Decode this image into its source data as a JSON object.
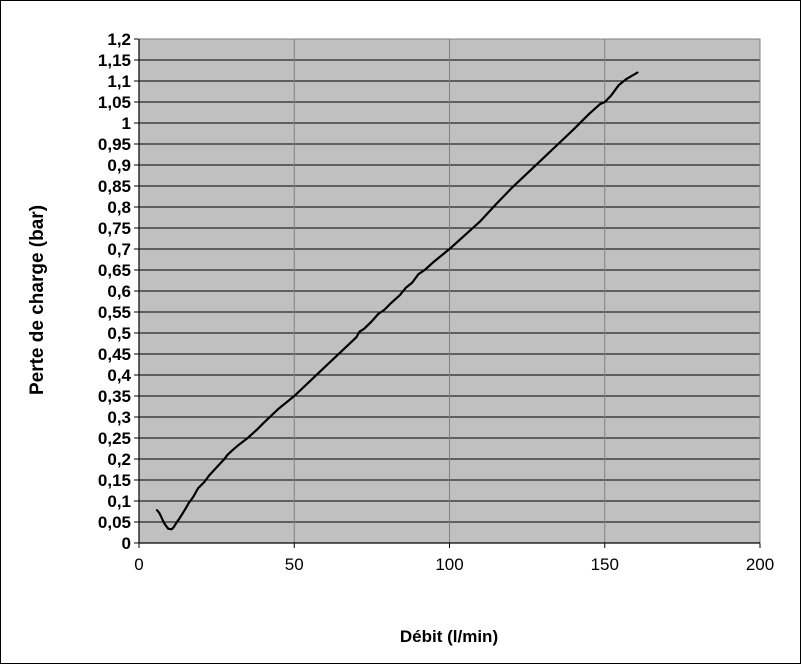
{
  "chart_data": {
    "type": "line",
    "title": "",
    "xlabel": "Débit (l/min)",
    "ylabel": "Perte de charge (bar)",
    "xlim": [
      0,
      200
    ],
    "ylim": [
      0,
      1.2
    ],
    "x_ticks": [
      0,
      50,
      100,
      150,
      200
    ],
    "x_tick_labels": [
      "0",
      "50",
      "100",
      "150",
      "200"
    ],
    "y_ticks": [
      0,
      0.05,
      0.1,
      0.15,
      0.2,
      0.25,
      0.3,
      0.35,
      0.4,
      0.45,
      0.5,
      0.55,
      0.6,
      0.65,
      0.7,
      0.75,
      0.8,
      0.85,
      0.9,
      0.95,
      1,
      1.05,
      1.1,
      1.15,
      1.2
    ],
    "y_tick_labels": [
      "0",
      "0,05",
      "0,1",
      "0,15",
      "0,2",
      "0,25",
      "0,3",
      "0,35",
      "0,4",
      "0,45",
      "0,5",
      "0,55",
      "0,6",
      "0,65",
      "0,7",
      "0,75",
      "0,8",
      "0,85",
      "0,9",
      "0,95",
      "1",
      "1,05",
      "1,1",
      "1,15",
      "1,2"
    ],
    "grid": true,
    "legend": false,
    "plot_background": "#c0c0c0",
    "line_color": "#000000",
    "series": [
      {
        "x": [
          5.8,
          6.5,
          7.0,
          7.6,
          8.2,
          8.8,
          9.4,
          10.0,
          10.6,
          11.2,
          11.8,
          12.4,
          13.0,
          14.0,
          15.0,
          16.0,
          17.5,
          19.0,
          21.0,
          22.5,
          25.0,
          27.5,
          28.5,
          30.0,
          32.0,
          35.0,
          38.0,
          40.0,
          45.0,
          50.0,
          55.0,
          60.0,
          65.0,
          70.0,
          71.0,
          72.5,
          75.0,
          77.0,
          79.0,
          81.0,
          84.0,
          86.0,
          88.0,
          90.0,
          92.0,
          95.0,
          100.0,
          105.0,
          110.0,
          115.0,
          120.0,
          125.0,
          130.0,
          135.0,
          140.0,
          145.0,
          148.5,
          150.0,
          152.0,
          154.5,
          157.0,
          160.5
        ],
        "y": [
          0.078,
          0.072,
          0.065,
          0.055,
          0.046,
          0.04,
          0.034,
          0.033,
          0.033,
          0.038,
          0.045,
          0.052,
          0.058,
          0.07,
          0.082,
          0.095,
          0.11,
          0.13,
          0.145,
          0.16,
          0.18,
          0.2,
          0.21,
          0.22,
          0.233,
          0.25,
          0.27,
          0.285,
          0.32,
          0.35,
          0.385,
          0.42,
          0.455,
          0.49,
          0.503,
          0.51,
          0.528,
          0.545,
          0.555,
          0.57,
          0.59,
          0.608,
          0.62,
          0.64,
          0.65,
          0.67,
          0.7,
          0.733,
          0.767,
          0.807,
          0.845,
          0.88,
          0.915,
          0.95,
          0.985,
          1.022,
          1.045,
          1.05,
          1.065,
          1.09,
          1.105,
          1.12
        ]
      }
    ]
  }
}
